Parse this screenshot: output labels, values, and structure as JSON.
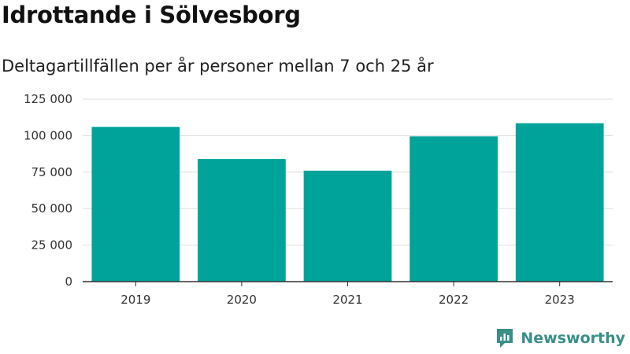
{
  "header": {
    "title": "Idrottande i Sölvesborg",
    "subtitle": "Deltagartillfällen per år personer mellan 7 och 25 år"
  },
  "brand": {
    "name": "Newsworthy",
    "color": "#3a8f88"
  },
  "colors": {
    "bar": "#00a39a",
    "grid": "#dddddd",
    "axis": "#333333"
  },
  "chart_data": {
    "type": "bar",
    "categories": [
      "2019",
      "2020",
      "2021",
      "2022",
      "2023"
    ],
    "values": [
      106000,
      84000,
      76000,
      99500,
      108500
    ],
    "ylim": [
      0,
      125000
    ],
    "yticks": [
      0,
      25000,
      50000,
      75000,
      100000,
      125000
    ],
    "ytick_labels": [
      "0",
      "25 000",
      "50 000",
      "75 000",
      "100 000",
      "125 000"
    ],
    "grid": true,
    "legend": false
  }
}
